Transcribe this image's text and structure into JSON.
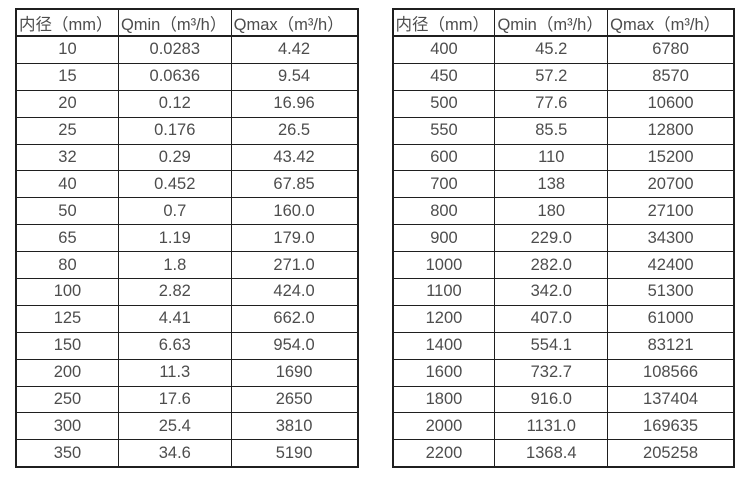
{
  "page": {
    "background_color": "#ffffff",
    "text_color": "#4d4d4d",
    "border_color": "#1f1f1f"
  },
  "tables": [
    {
      "name": "flow-range-table-small-diameters",
      "headers": [
        "内径（mm）",
        "Qmin（m³/h）",
        "Qmax（m³/h）"
      ],
      "rows": [
        [
          "10",
          "0.0283",
          "4.42"
        ],
        [
          "15",
          "0.0636",
          "9.54"
        ],
        [
          "20",
          "0.12",
          "16.96"
        ],
        [
          "25",
          "0.176",
          "26.5"
        ],
        [
          "32",
          "0.29",
          "43.42"
        ],
        [
          "40",
          "0.452",
          "67.85"
        ],
        [
          "50",
          "0.7",
          "160.0"
        ],
        [
          "65",
          "1.19",
          "179.0"
        ],
        [
          "80",
          "1.8",
          "271.0"
        ],
        [
          "100",
          "2.82",
          "424.0"
        ],
        [
          "125",
          "4.41",
          "662.0"
        ],
        [
          "150",
          "6.63",
          "954.0"
        ],
        [
          "200",
          "11.3",
          "1690"
        ],
        [
          "250",
          "17.6",
          "2650"
        ],
        [
          "300",
          "25.4",
          "3810"
        ],
        [
          "350",
          "34.6",
          "5190"
        ]
      ]
    },
    {
      "name": "flow-range-table-large-diameters",
      "headers": [
        "内径（mm）",
        "Qmin（m³/h）",
        "Qmax（m³/h）"
      ],
      "rows": [
        [
          "400",
          "45.2",
          "6780"
        ],
        [
          "450",
          "57.2",
          "8570"
        ],
        [
          "500",
          "77.6",
          "10600"
        ],
        [
          "550",
          "85.5",
          "12800"
        ],
        [
          "600",
          "110",
          "15200"
        ],
        [
          "700",
          "138",
          "20700"
        ],
        [
          "800",
          "180",
          "27100"
        ],
        [
          "900",
          "229.0",
          "34300"
        ],
        [
          "1000",
          "282.0",
          "42400"
        ],
        [
          "1100",
          "342.0",
          "51300"
        ],
        [
          "1200",
          "407.0",
          "61000"
        ],
        [
          "1400",
          "554.1",
          "83121"
        ],
        [
          "1600",
          "732.7",
          "108566"
        ],
        [
          "1800",
          "916.0",
          "137404"
        ],
        [
          "2000",
          "1131.0",
          "169635"
        ],
        [
          "2200",
          "1368.4",
          "205258"
        ]
      ]
    }
  ]
}
